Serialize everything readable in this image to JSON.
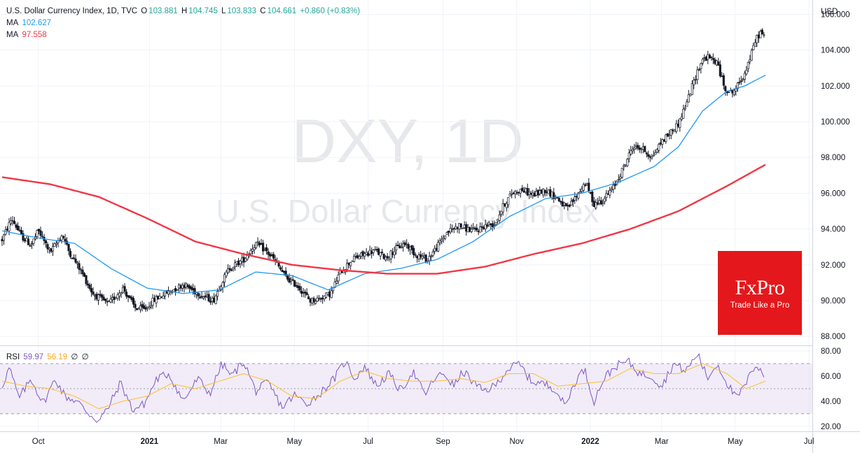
{
  "header": {
    "symbol": "U.S. Dollar Currency Index, 1D, TVC",
    "open_label": "O",
    "open": "103.881",
    "high_label": "H",
    "high": "104.745",
    "low_label": "L",
    "low": "103.833",
    "close_label": "C",
    "close": "104.661",
    "change": "+0.860 (+0.83%)"
  },
  "ma_legend": [
    {
      "label": "MA",
      "value": "102.627",
      "color": "#2196f3"
    },
    {
      "label": "MA",
      "value": "97.558",
      "color": "#f23645"
    }
  ],
  "rsi_legend": {
    "label": "RSI",
    "value": "59.97",
    "ma_value": "56.19",
    "extra1": "∅",
    "extra2": "∅",
    "color": "#7e57c2",
    "ma_color": "#fbc02d"
  },
  "watermark": {
    "line1": "DXY, 1D",
    "line2": "U.S. Dollar Currency Index"
  },
  "badge": {
    "brand": "FxPro",
    "tagline": "Trade Like a Pro",
    "color": "#e4181c"
  },
  "colors": {
    "up": "#26a69a",
    "down": "#ef5350",
    "candle": "#131722",
    "ma_fast": "#2196f3",
    "ma_slow": "#f23645",
    "rsi": "#7e57c2",
    "rsi_ma": "#fbc02d",
    "rsi_band": "#ede7f6"
  },
  "chart_data": [
    {
      "type": "candlestick",
      "currency_label": "USD",
      "ylim": [
        87.5,
        106.8
      ],
      "y_ticks": [
        "106.000",
        "104.000",
        "102.000",
        "100.000",
        "98.000",
        "96.000",
        "94.000",
        "92.000",
        "90.000",
        "88.000"
      ],
      "x_ticks": [
        "Oct",
        "2021",
        "Mar",
        "May",
        "Jul",
        "Sep",
        "Nov",
        "2022",
        "Mar",
        "May",
        "Jul"
      ],
      "x_tick_days": [
        30,
        122,
        181,
        242,
        303,
        365,
        426,
        487,
        546,
        607,
        668
      ],
      "last_day": 632,
      "price_path": [
        [
          0,
          93.4
        ],
        [
          8,
          94.6
        ],
        [
          16,
          93.6
        ],
        [
          24,
          93.1
        ],
        [
          30,
          93.9
        ],
        [
          40,
          92.7
        ],
        [
          50,
          93.7
        ],
        [
          55,
          92.8
        ],
        [
          65,
          91.7
        ],
        [
          75,
          90.4
        ],
        [
          88,
          89.8
        ],
        [
          100,
          90.7
        ],
        [
          110,
          89.6
        ],
        [
          118,
          89.5
        ],
        [
          125,
          90.0
        ],
        [
          135,
          90.4
        ],
        [
          150,
          90.9
        ],
        [
          165,
          90.3
        ],
        [
          175,
          90.0
        ],
        [
          180,
          90.8
        ],
        [
          188,
          91.8
        ],
        [
          200,
          92.3
        ],
        [
          210,
          93.2
        ],
        [
          218,
          92.8
        ],
        [
          225,
          92.3
        ],
        [
          235,
          91.3
        ],
        [
          245,
          90.8
        ],
        [
          255,
          90.0
        ],
        [
          262,
          90.1
        ],
        [
          272,
          90.4
        ],
        [
          280,
          91.6
        ],
        [
          290,
          92.3
        ],
        [
          300,
          92.6
        ],
        [
          308,
          92.8
        ],
        [
          318,
          92.4
        ],
        [
          326,
          92.9
        ],
        [
          334,
          93.2
        ],
        [
          342,
          92.6
        ],
        [
          352,
          92.3
        ],
        [
          360,
          93.0
        ],
        [
          368,
          93.8
        ],
        [
          378,
          94.2
        ],
        [
          385,
          94.0
        ],
        [
          392,
          93.9
        ],
        [
          400,
          94.2
        ],
        [
          408,
          94.3
        ],
        [
          415,
          95.3
        ],
        [
          422,
          96.0
        ],
        [
          430,
          96.2
        ],
        [
          440,
          95.9
        ],
        [
          450,
          96.2
        ],
        [
          460,
          95.7
        ],
        [
          468,
          95.1
        ],
        [
          476,
          95.9
        ],
        [
          483,
          96.6
        ],
        [
          490,
          95.4
        ],
        [
          497,
          95.6
        ],
        [
          506,
          96.3
        ],
        [
          515,
          97.5
        ],
        [
          522,
          98.6
        ],
        [
          530,
          98.5
        ],
        [
          538,
          98.0
        ],
        [
          546,
          98.9
        ],
        [
          552,
          99.3
        ],
        [
          560,
          99.9
        ],
        [
          568,
          101.3
        ],
        [
          575,
          102.7
        ],
        [
          580,
          103.5
        ],
        [
          585,
          103.6
        ],
        [
          592,
          103.3
        ],
        [
          598,
          101.9
        ],
        [
          604,
          101.6
        ],
        [
          608,
          101.9
        ],
        [
          614,
          102.6
        ],
        [
          620,
          103.7
        ],
        [
          624,
          104.6
        ],
        [
          628,
          105.0
        ],
        [
          632,
          104.7
        ]
      ],
      "series": [
        {
          "name": "MA",
          "kind": "moving_average",
          "current": 102.627,
          "path": [
            [
              0,
              93.9
            ],
            [
              30,
              93.5
            ],
            [
              60,
              93.2
            ],
            [
              90,
              91.8
            ],
            [
              120,
              90.7
            ],
            [
              150,
              90.4
            ],
            [
              180,
              90.6
            ],
            [
              210,
              91.6
            ],
            [
              240,
              91.4
            ],
            [
              270,
              90.6
            ],
            [
              300,
              91.5
            ],
            [
              330,
              91.8
            ],
            [
              360,
              92.3
            ],
            [
              390,
              93.3
            ],
            [
              420,
              94.7
            ],
            [
              450,
              95.7
            ],
            [
              480,
              96.0
            ],
            [
              510,
              96.6
            ],
            [
              540,
              97.5
            ],
            [
              560,
              98.6
            ],
            [
              580,
              100.6
            ],
            [
              600,
              101.7
            ],
            [
              615,
              102.0
            ],
            [
              632,
              102.6
            ]
          ]
        },
        {
          "name": "MA",
          "kind": "moving_average",
          "current": 97.558,
          "path": [
            [
              0,
              96.9
            ],
            [
              40,
              96.5
            ],
            [
              80,
              95.8
            ],
            [
              120,
              94.6
            ],
            [
              160,
              93.3
            ],
            [
              200,
              92.6
            ],
            [
              240,
              92.0
            ],
            [
              280,
              91.7
            ],
            [
              320,
              91.5
            ],
            [
              360,
              91.5
            ],
            [
              400,
              91.9
            ],
            [
              440,
              92.6
            ],
            [
              480,
              93.2
            ],
            [
              520,
              94.0
            ],
            [
              560,
              95.0
            ],
            [
              600,
              96.4
            ],
            [
              632,
              97.6
            ]
          ]
        }
      ]
    },
    {
      "type": "line",
      "name": "RSI",
      "ylim": [
        16,
        84
      ],
      "y_ticks": [
        "80.00",
        "60.00",
        "40.00",
        "20.00"
      ],
      "bands": [
        30,
        50,
        70
      ],
      "rsi_anchors": [
        [
          0,
          52
        ],
        [
          6,
          67
        ],
        [
          14,
          42
        ],
        [
          24,
          58
        ],
        [
          34,
          38
        ],
        [
          44,
          58
        ],
        [
          52,
          44
        ],
        [
          62,
          40
        ],
        [
          72,
          30
        ],
        [
          80,
          24
        ],
        [
          88,
          35
        ],
        [
          98,
          55
        ],
        [
          108,
          33
        ],
        [
          118,
          38
        ],
        [
          128,
          58
        ],
        [
          138,
          62
        ],
        [
          150,
          40
        ],
        [
          162,
          58
        ],
        [
          172,
          46
        ],
        [
          182,
          70
        ],
        [
          190,
          60
        ],
        [
          200,
          72
        ],
        [
          210,
          48
        ],
        [
          220,
          55
        ],
        [
          232,
          35
        ],
        [
          242,
          45
        ],
        [
          252,
          38
        ],
        [
          262,
          45
        ],
        [
          275,
          58
        ],
        [
          284,
          72
        ],
        [
          292,
          58
        ],
        [
          300,
          68
        ],
        [
          310,
          52
        ],
        [
          320,
          62
        ],
        [
          330,
          48
        ],
        [
          340,
          64
        ],
        [
          350,
          45
        ],
        [
          358,
          58
        ],
        [
          366,
          62
        ],
        [
          374,
          52
        ],
        [
          382,
          64
        ],
        [
          390,
          55
        ],
        [
          398,
          48
        ],
        [
          408,
          52
        ],
        [
          418,
          65
        ],
        [
          428,
          70
        ],
        [
          438,
          56
        ],
        [
          448,
          54
        ],
        [
          458,
          50
        ],
        [
          466,
          36
        ],
        [
          474,
          55
        ],
        [
          482,
          66
        ],
        [
          490,
          40
        ],
        [
          498,
          58
        ],
        [
          508,
          68
        ],
        [
          518,
          72
        ],
        [
          528,
          62
        ],
        [
          538,
          60
        ],
        [
          546,
          52
        ],
        [
          556,
          70
        ],
        [
          566,
          64
        ],
        [
          576,
          78
        ],
        [
          584,
          58
        ],
        [
          592,
          70
        ],
        [
          600,
          55
        ],
        [
          608,
          42
        ],
        [
          616,
          54
        ],
        [
          624,
          70
        ],
        [
          632,
          60
        ]
      ],
      "rsi_ma_anchors": [
        [
          0,
          56
        ],
        [
          20,
          52
        ],
        [
          40,
          50
        ],
        [
          60,
          44
        ],
        [
          80,
          34
        ],
        [
          100,
          40
        ],
        [
          120,
          44
        ],
        [
          140,
          54
        ],
        [
          160,
          50
        ],
        [
          180,
          56
        ],
        [
          200,
          62
        ],
        [
          220,
          56
        ],
        [
          240,
          44
        ],
        [
          260,
          42
        ],
        [
          280,
          56
        ],
        [
          300,
          64
        ],
        [
          320,
          58
        ],
        [
          340,
          56
        ],
        [
          360,
          56
        ],
        [
          380,
          58
        ],
        [
          400,
          55
        ],
        [
          420,
          62
        ],
        [
          440,
          62
        ],
        [
          460,
          52
        ],
        [
          480,
          54
        ],
        [
          500,
          56
        ],
        [
          520,
          66
        ],
        [
          540,
          62
        ],
        [
          560,
          62
        ],
        [
          580,
          70
        ],
        [
          600,
          62
        ],
        [
          616,
          50
        ],
        [
          632,
          56
        ]
      ]
    }
  ]
}
